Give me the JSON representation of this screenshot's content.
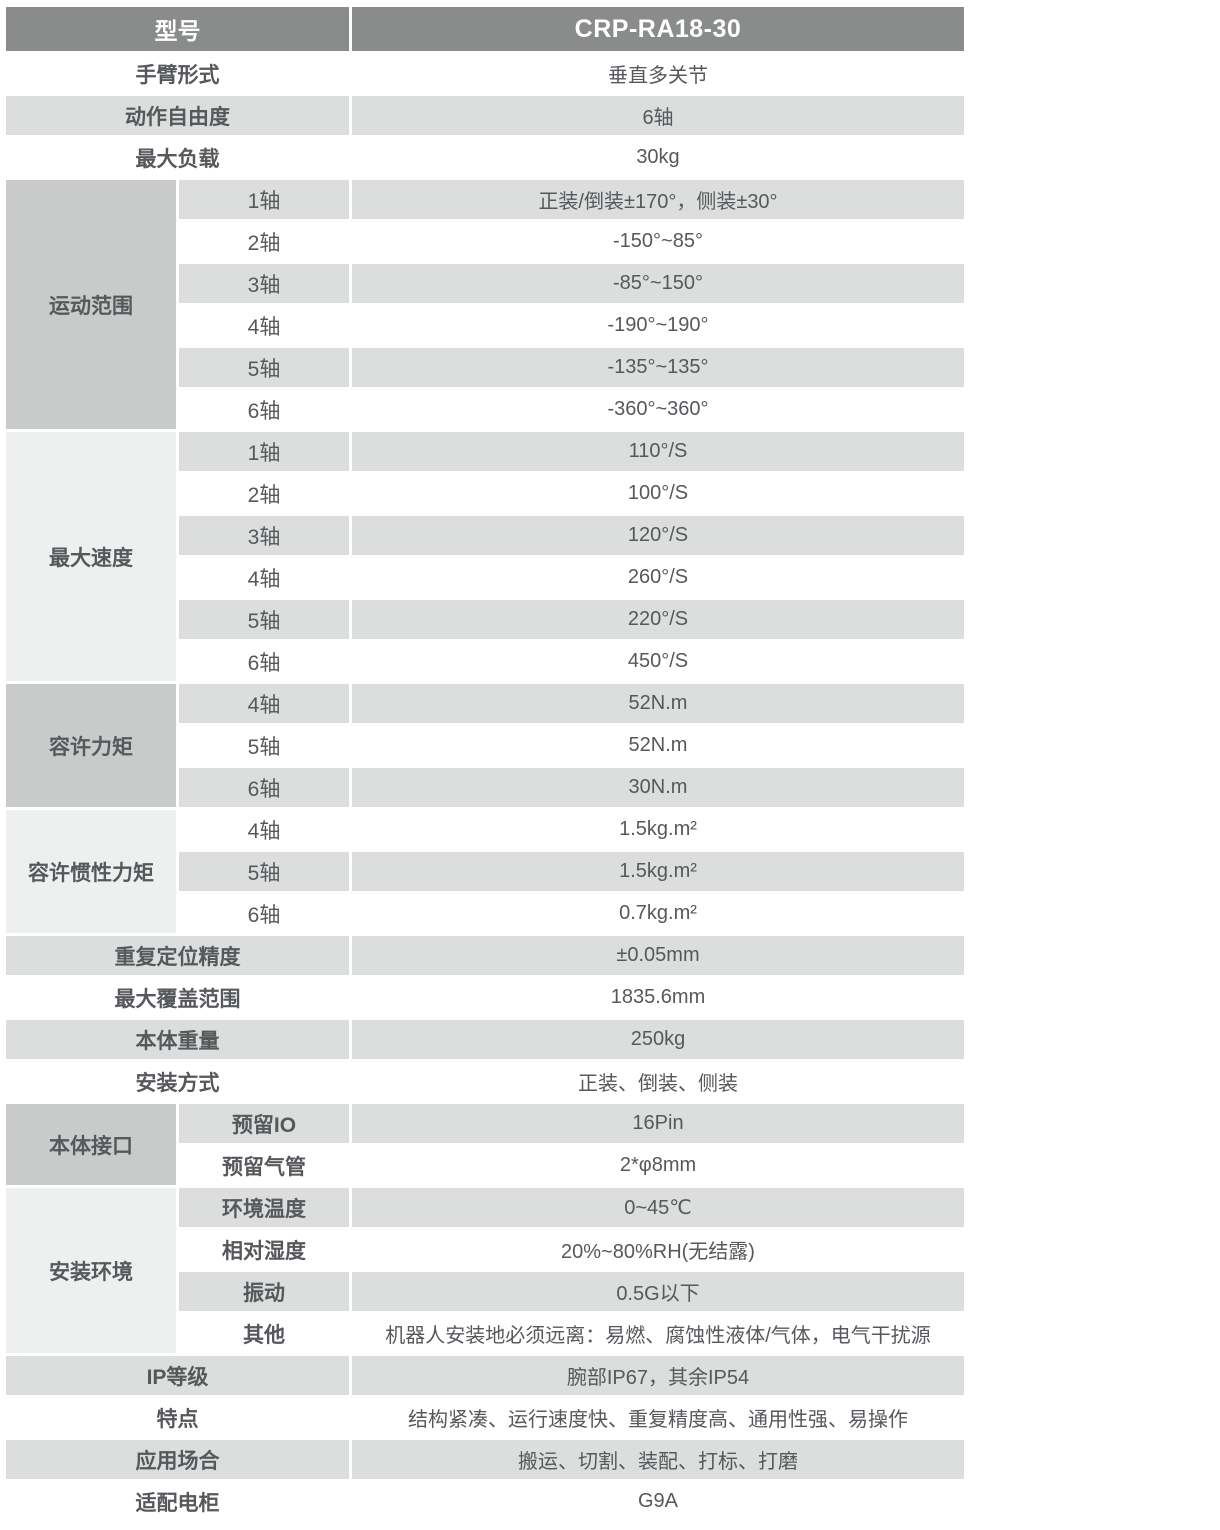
{
  "header": {
    "label": "型号",
    "value": "CRP-RA18-30"
  },
  "colors": {
    "header_bg": "#8a8b8b",
    "header_text": "#ffffff",
    "stripe_gray": "#dcdddd",
    "group_dark": "#c9caca",
    "group_light": "#eeefef",
    "text": "#56585c"
  },
  "rows": [
    {
      "type": "full",
      "label": "手臂形式",
      "value": "垂直多关节"
    },
    {
      "type": "full",
      "label": "动作自由度",
      "value": "6轴"
    },
    {
      "type": "full",
      "label": "最大负载",
      "value": "30kg"
    },
    {
      "type": "group",
      "group": "运动范围",
      "span": 6,
      "shade": "dark",
      "label": "1轴",
      "label_bold": false,
      "value": "正装/倒装±170°，侧装±30°"
    },
    {
      "type": "sub",
      "label": "2轴",
      "label_bold": false,
      "value": "-150°~85°"
    },
    {
      "type": "sub",
      "label": "3轴",
      "label_bold": false,
      "value": "-85°~150°"
    },
    {
      "type": "sub",
      "label": "4轴",
      "label_bold": false,
      "value": "-190°~190°"
    },
    {
      "type": "sub",
      "label": "5轴",
      "label_bold": false,
      "value": "-135°~135°"
    },
    {
      "type": "sub",
      "label": "6轴",
      "label_bold": false,
      "value": "-360°~360°"
    },
    {
      "type": "group",
      "group": "最大速度",
      "span": 6,
      "shade": "light",
      "label": "1轴",
      "label_bold": false,
      "value": "110°/S"
    },
    {
      "type": "sub",
      "label": "2轴",
      "label_bold": false,
      "value": "100°/S"
    },
    {
      "type": "sub",
      "label": "3轴",
      "label_bold": false,
      "value": "120°/S"
    },
    {
      "type": "sub",
      "label": "4轴",
      "label_bold": false,
      "value": "260°/S"
    },
    {
      "type": "sub",
      "label": "5轴",
      "label_bold": false,
      "value": "220°/S"
    },
    {
      "type": "sub",
      "label": "6轴",
      "label_bold": false,
      "value": "450°/S"
    },
    {
      "type": "group",
      "group": "容许力矩",
      "span": 3,
      "shade": "dark",
      "label": "4轴",
      "label_bold": false,
      "value": "52N.m"
    },
    {
      "type": "sub",
      "label": "5轴",
      "label_bold": false,
      "value": "52N.m"
    },
    {
      "type": "sub",
      "label": "6轴",
      "label_bold": false,
      "value": "30N.m"
    },
    {
      "type": "group",
      "group": "容许惯性力矩",
      "span": 3,
      "shade": "light",
      "label": "4轴",
      "label_bold": false,
      "value": "1.5kg.m²"
    },
    {
      "type": "sub",
      "label": "5轴",
      "label_bold": false,
      "value": "1.5kg.m²"
    },
    {
      "type": "sub",
      "label": "6轴",
      "label_bold": false,
      "value": "0.7kg.m²"
    },
    {
      "type": "full",
      "label": "重复定位精度",
      "value": "±0.05mm"
    },
    {
      "type": "full",
      "label": "最大覆盖范围",
      "value": "1835.6mm"
    },
    {
      "type": "full",
      "label": "本体重量",
      "value": "250kg"
    },
    {
      "type": "full",
      "label": "安装方式",
      "value": "正装、倒装、侧装"
    },
    {
      "type": "group",
      "group": "本体接口",
      "span": 2,
      "shade": "dark",
      "label": "预留IO",
      "label_bold": true,
      "value": "16Pin"
    },
    {
      "type": "sub",
      "label": "预留气管",
      "label_bold": true,
      "value": "2*φ8mm"
    },
    {
      "type": "group",
      "group": "安装环境",
      "span": 4,
      "shade": "light",
      "label": "环境温度",
      "label_bold": true,
      "value": "0~45℃"
    },
    {
      "type": "sub",
      "label": "相对湿度",
      "label_bold": true,
      "value": "20%~80%RH(无结露)"
    },
    {
      "type": "sub",
      "label": "振动",
      "label_bold": true,
      "value": "0.5G以下"
    },
    {
      "type": "sub",
      "label": "其他",
      "label_bold": true,
      "value": "机器人安装地必须远离：易燃、腐蚀性液体/气体，电气干扰源"
    },
    {
      "type": "full",
      "label": "IP等级",
      "value": "腕部IP67，其余IP54"
    },
    {
      "type": "full",
      "label": "特点",
      "value": "结构紧凑、运行速度快、重复精度高、通用性强、易操作"
    },
    {
      "type": "full",
      "label": "应用场合",
      "value": "搬运、切割、装配、打标、打磨"
    },
    {
      "type": "full",
      "label": "适配电柜",
      "value": "G9A"
    }
  ]
}
